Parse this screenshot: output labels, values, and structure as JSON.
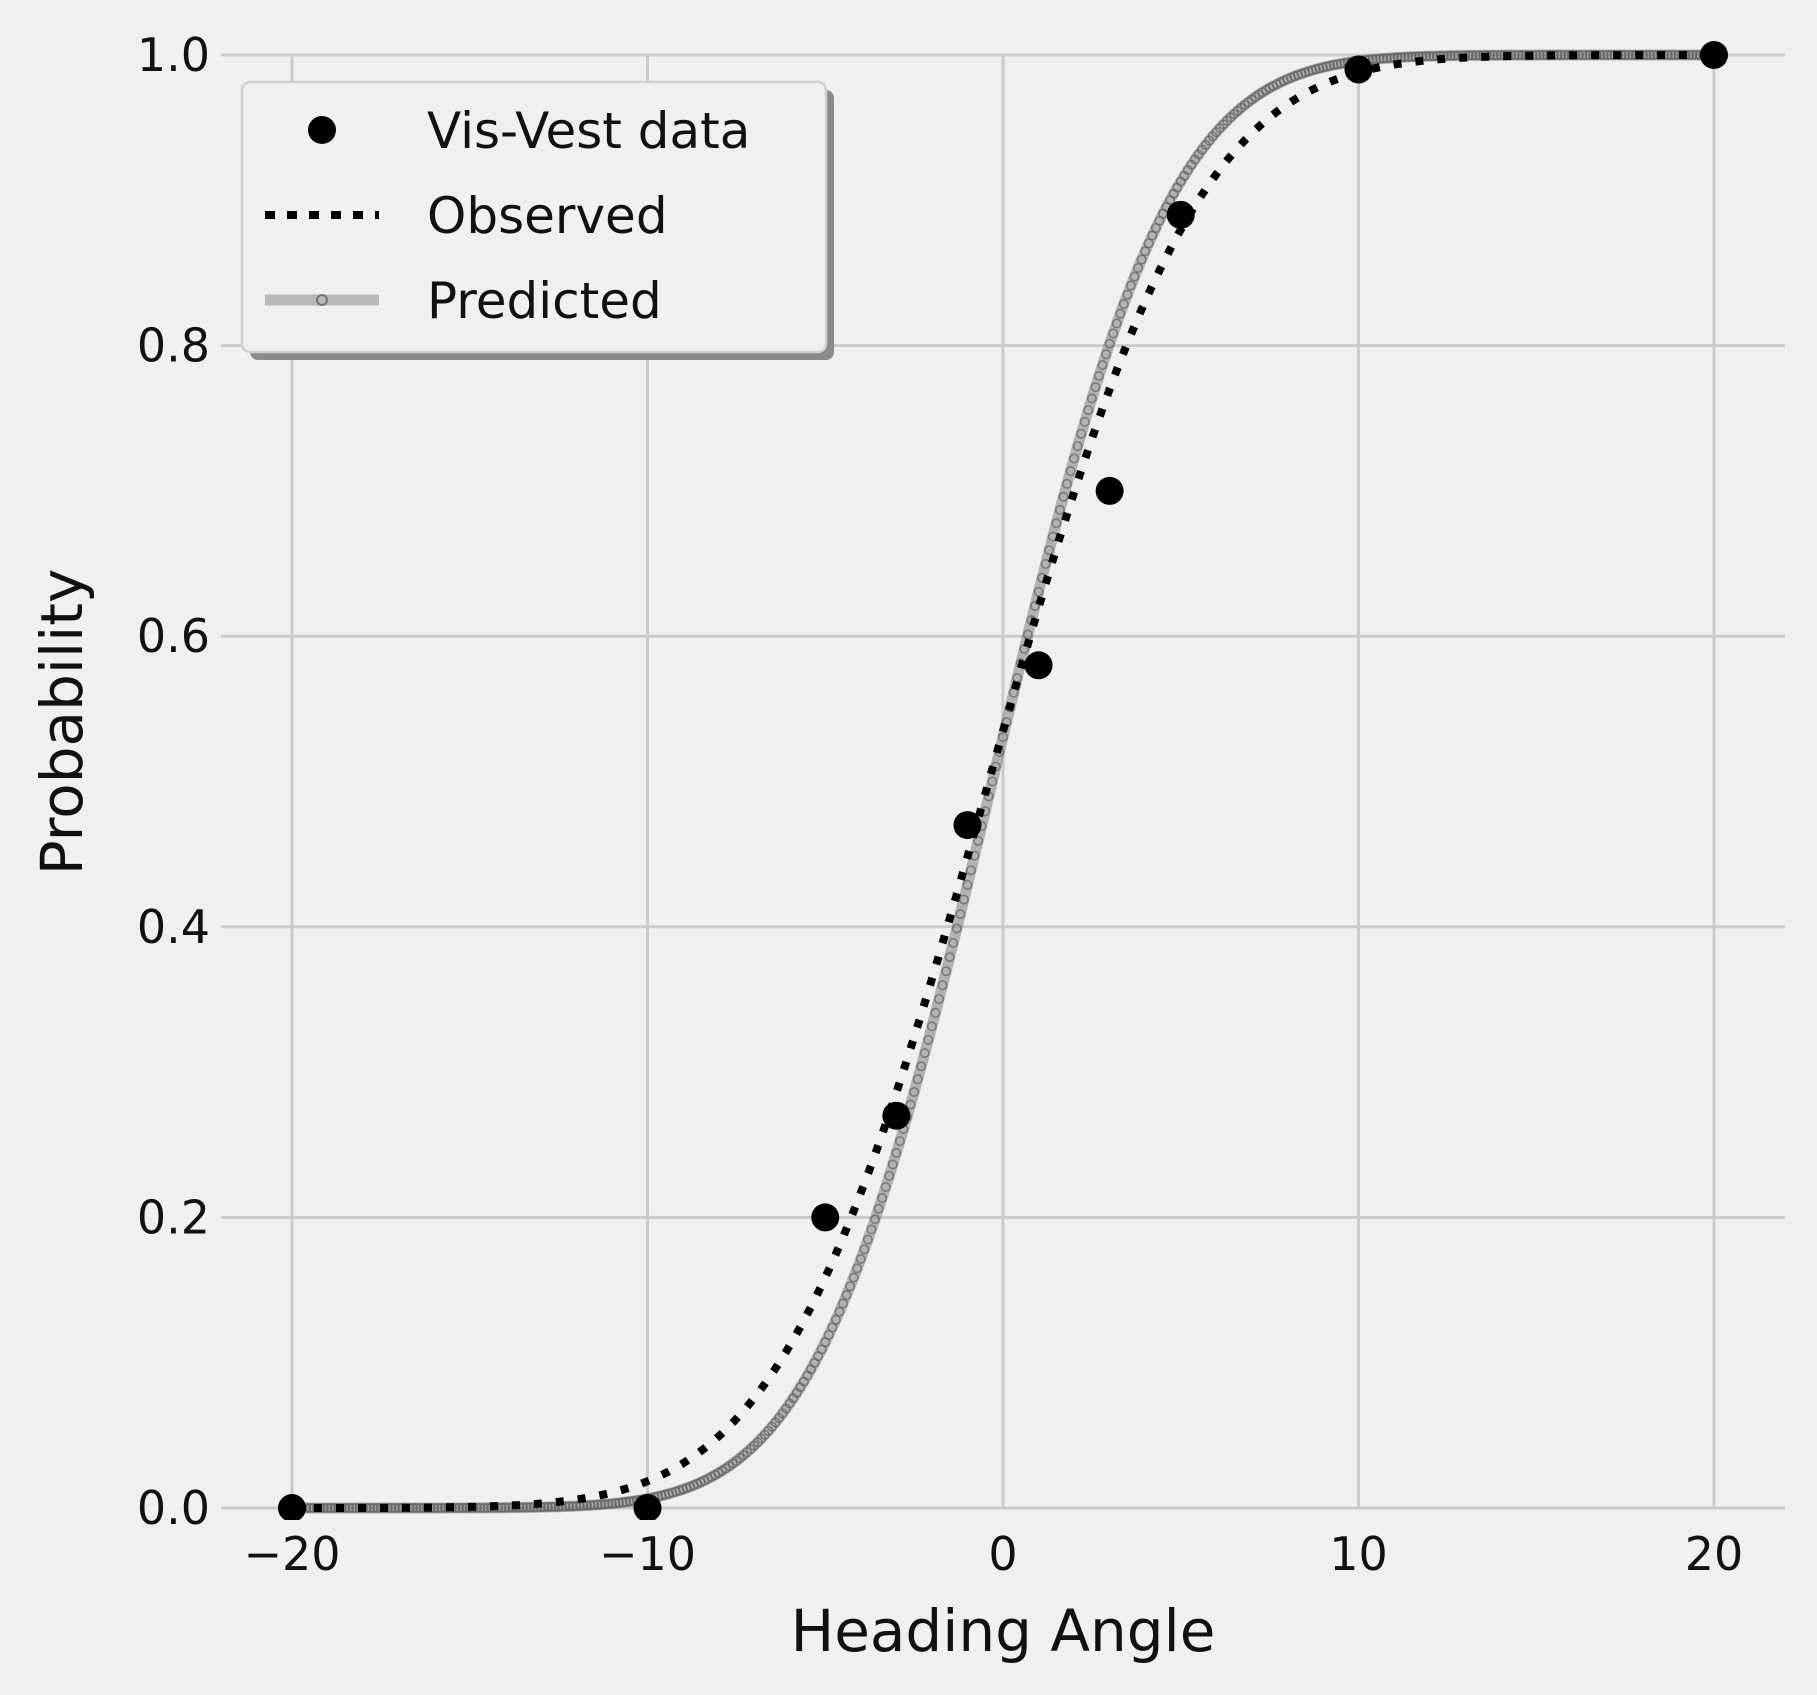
{
  "chart_data": {
    "type": "scatter",
    "xlabel": "Heading Angle",
    "ylabel": "Probability",
    "xlim": [
      -22,
      22
    ],
    "ylim": [
      0,
      1.0
    ],
    "xticks": [
      -20,
      -10,
      0,
      10,
      20
    ],
    "xtick_labels": [
      "−20",
      "−10",
      "0",
      "10",
      "20"
    ],
    "yticks": [
      0.0,
      0.2,
      0.4,
      0.6,
      0.8,
      1.0
    ],
    "ytick_labels": [
      "0.0",
      "0.2",
      "0.4",
      "0.6",
      "0.8",
      "1.0"
    ],
    "grid": true,
    "legend_position": "upper-left",
    "series": [
      {
        "name": "Vis-Vest data",
        "kind": "markers",
        "color": "#000000",
        "x": [
          -20,
          -10,
          -5,
          -3,
          -1,
          1,
          3,
          5,
          10,
          20
        ],
        "y": [
          0.0,
          0.0,
          0.2,
          0.27,
          0.47,
          0.58,
          0.7,
          0.89,
          0.99,
          1.0
        ]
      },
      {
        "name": "Observed",
        "kind": "dotted-line",
        "color": "#000000",
        "model": "cumulative-gaussian",
        "mu": -0.4,
        "sigma": 4.6
      },
      {
        "name": "Predicted",
        "kind": "line-with-small-markers",
        "color": "#808080",
        "model": "cumulative-gaussian",
        "mu": -0.3,
        "sigma": 3.9
      }
    ]
  }
}
